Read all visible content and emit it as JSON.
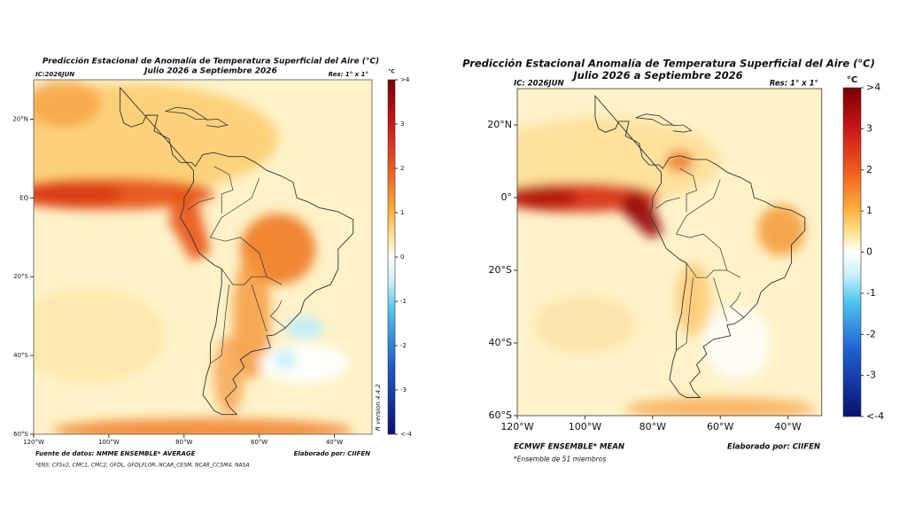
{
  "left": {
    "title": "Predicción Estacional de Anomalía de Temperatura Superficial del Aire (°C)",
    "subtitle": "Julio 2026 a Septiembre 2026",
    "ic": "IC:2026JUN",
    "res": "Res: 1° x 1°",
    "unit": "°C",
    "lat_labels": [
      "20°N",
      "EQ",
      "20°S",
      "40°S",
      "60°S"
    ],
    "lon_labels": [
      "120°W",
      "100°W",
      "80°W",
      "60°W",
      "40°W"
    ],
    "colorbar_labels": [
      ">4",
      "3",
      "2",
      "1",
      "0",
      "-1",
      "-2",
      "-3",
      "<-4"
    ],
    "source": "Fuente de datos: NMME ENSEMBLE* AVERAGE",
    "credit": "Elaborado por: CIIFEN",
    "note": "*ENS: CFSv2, CMC1, CMC2, GFDL, GFDLFLOR, NCAR_CESM, NCAR_CCSM4, NASA",
    "version": "R version 4.4.2"
  },
  "right": {
    "title": "Predicción Estacional Anomalía de Temperatura Superficial del Aire (°C)",
    "subtitle": "Julio 2026 a Septiembre 2026",
    "ic": "IC: 2026JUN",
    "res": "Res: 1° x 1°",
    "unit": "°C",
    "lat_labels": [
      "20°N",
      "0°",
      "20°S",
      "40°S",
      "60°S"
    ],
    "lon_labels": [
      "120°W",
      "100°W",
      "80°W",
      "60°W",
      "40°W"
    ],
    "colorbar_labels": [
      ">4",
      "3",
      "2",
      "1",
      "0",
      "-1",
      "-2",
      "-3",
      "<-4"
    ],
    "source": "ECMWF ENSEMBLE* MEAN",
    "credit": "Elaborado por: CIIFEN",
    "note": "*Ensemble de 51 miembros"
  }
}
